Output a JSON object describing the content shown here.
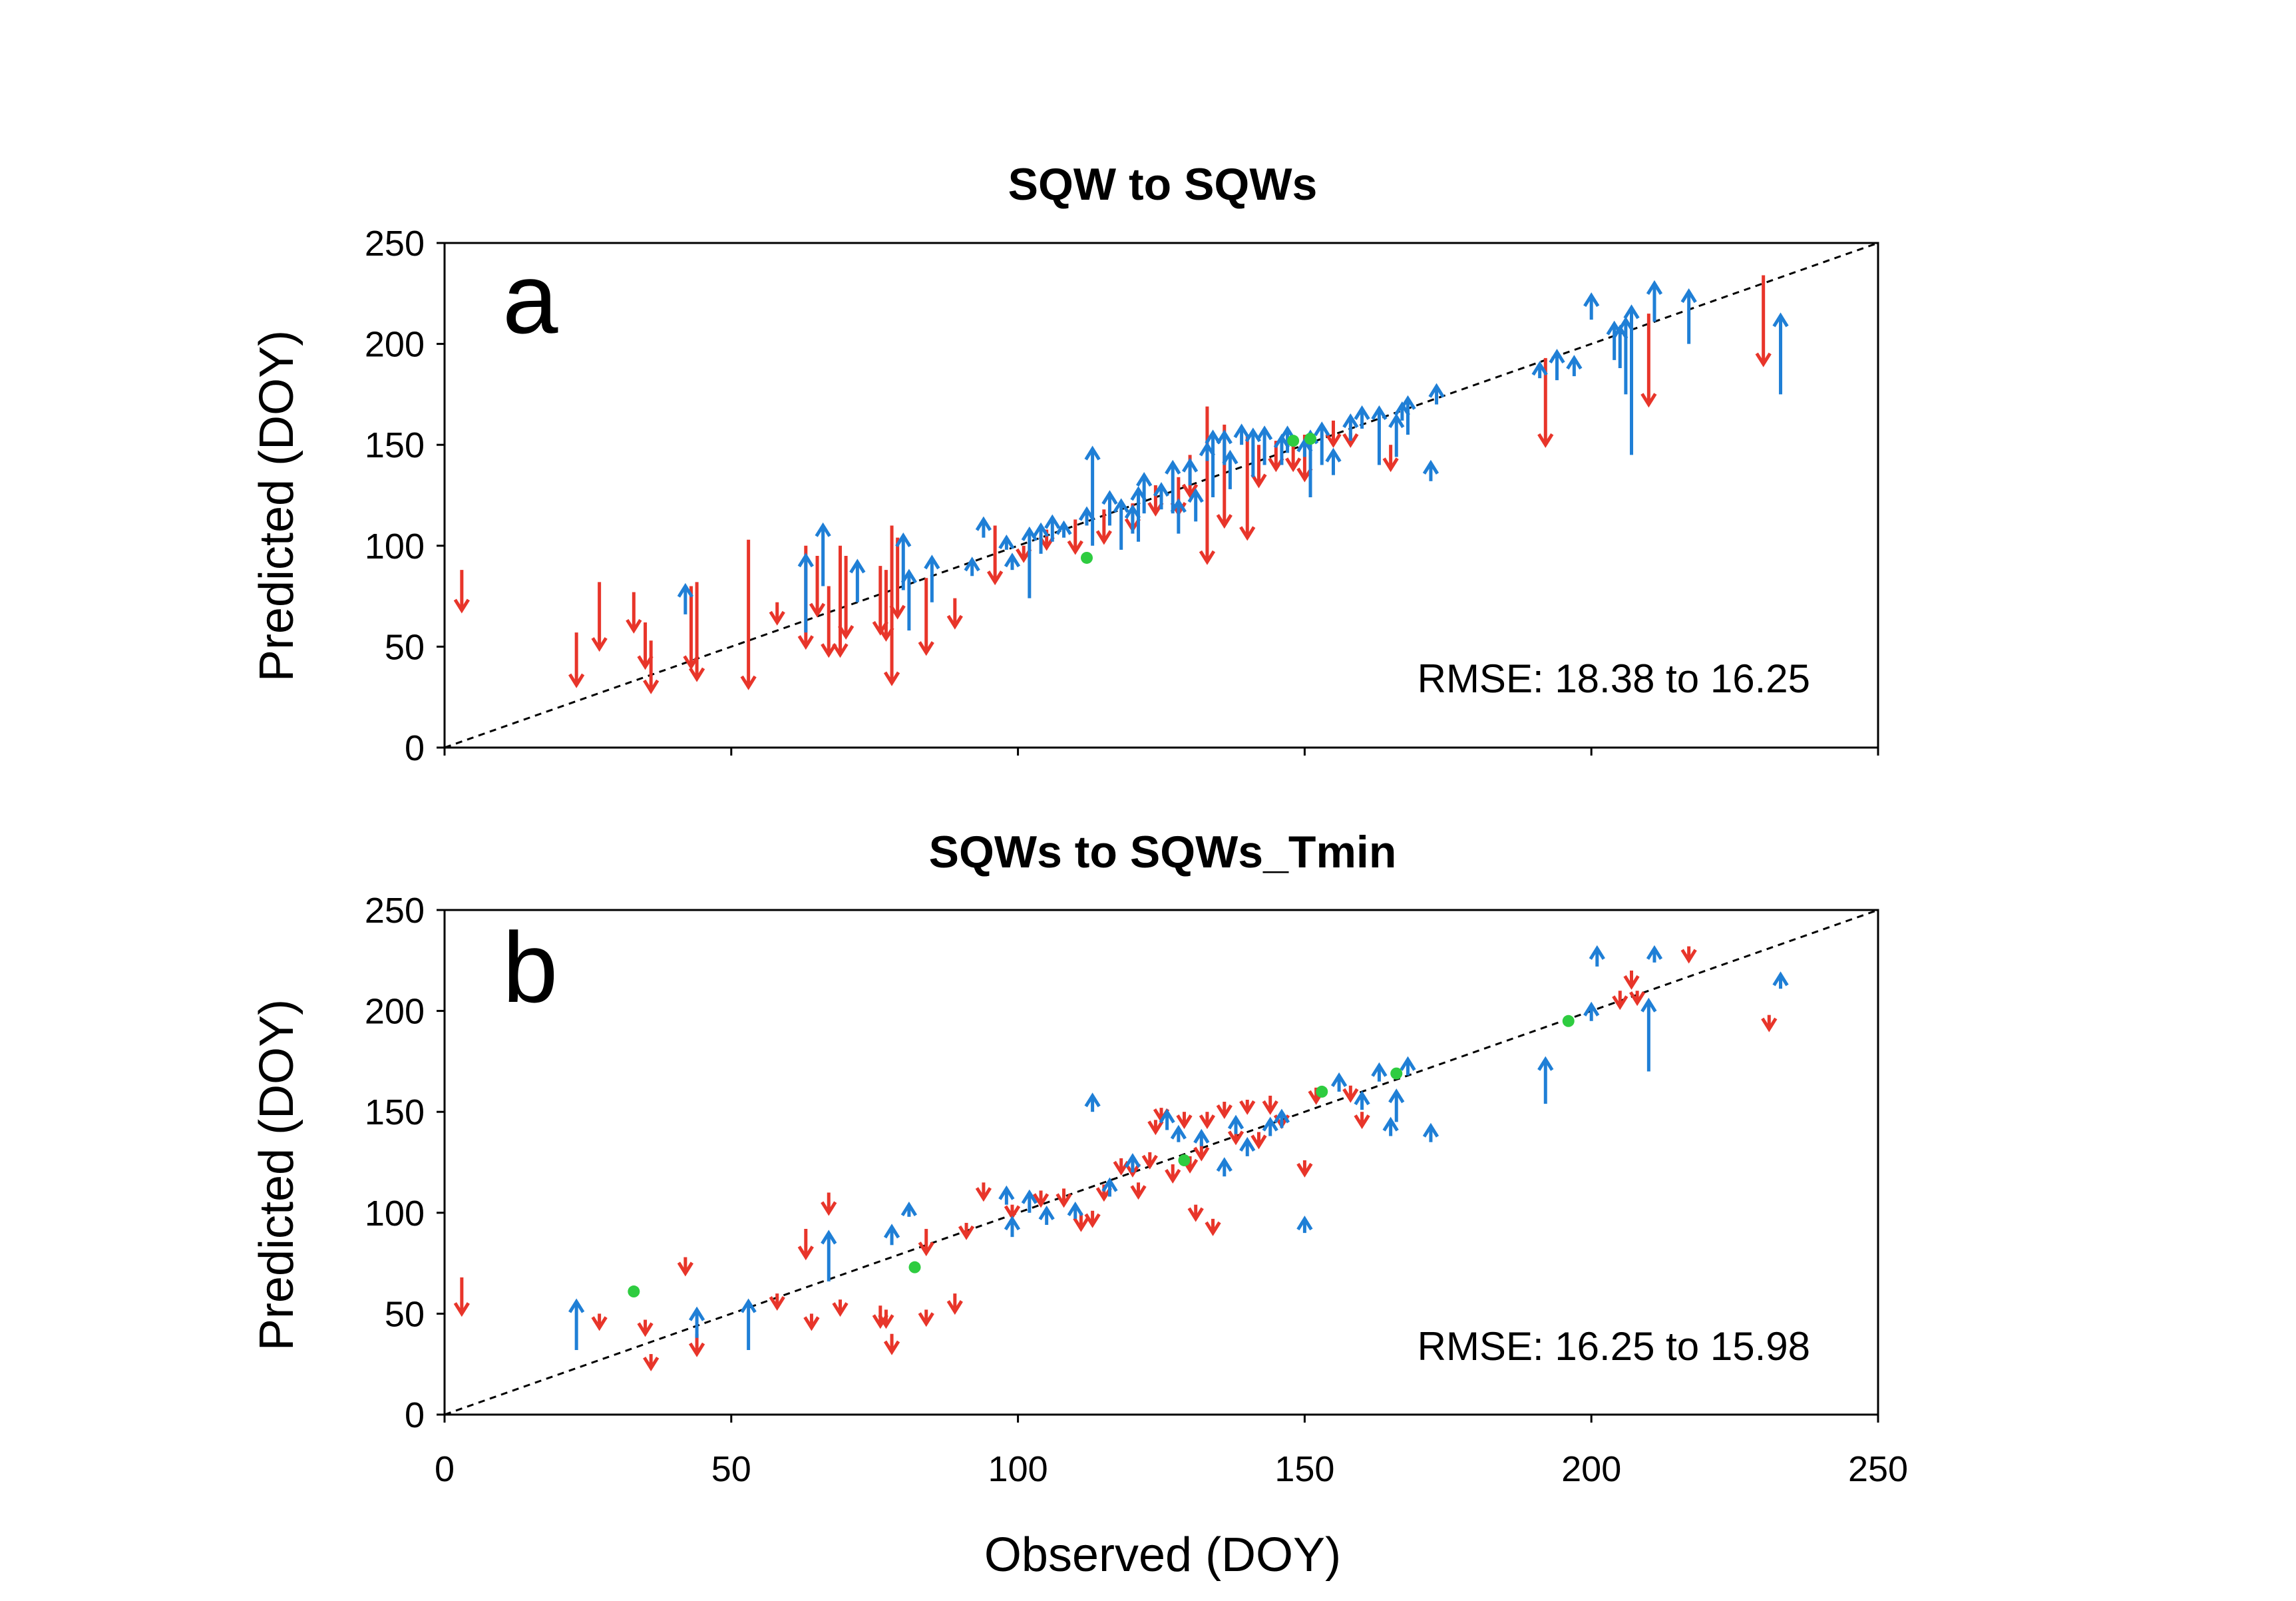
{
  "colors": {
    "increase": "#1f7fd6",
    "decrease": "#e8352a",
    "unchanged": "#2ecc40",
    "axis": "#000000"
  },
  "xlabel": "Observed (DOY)",
  "chart_data": [
    {
      "type": "scatter",
      "panel": "a",
      "title": "SQW to SQWs",
      "ylabel": "Predicted (DOY)",
      "xlabel": "Observed (DOY)",
      "xlim": [
        0,
        250
      ],
      "ylim": [
        0,
        250
      ],
      "xticks": [
        "0",
        "50",
        "100",
        "150",
        "200",
        "250"
      ],
      "yticks": [
        "0",
        "50",
        "100",
        "150",
        "200",
        "250"
      ],
      "annotation": "RMSE: 18.38 to 16.25",
      "reference_line": "1:1 dashed",
      "arrows": [
        {
          "x": 3,
          "from": 88,
          "to": 68
        },
        {
          "x": 23,
          "from": 57,
          "to": 31
        },
        {
          "x": 27,
          "from": 82,
          "to": 49
        },
        {
          "x": 33,
          "from": 77,
          "to": 58
        },
        {
          "x": 35,
          "from": 62,
          "to": 40
        },
        {
          "x": 36,
          "from": 53,
          "to": 28
        },
        {
          "x": 43,
          "from": 80,
          "to": 40
        },
        {
          "x": 44,
          "from": 82,
          "to": 34
        },
        {
          "x": 53,
          "from": 103,
          "to": 30
        },
        {
          "x": 58,
          "from": 72,
          "to": 62
        },
        {
          "x": 63,
          "from": 100,
          "to": 50
        },
        {
          "x": 65,
          "from": 95,
          "to": 66
        },
        {
          "x": 67,
          "from": 80,
          "to": 46
        },
        {
          "x": 69,
          "from": 100,
          "to": 46
        },
        {
          "x": 70,
          "from": 95,
          "to": 55
        },
        {
          "x": 76,
          "from": 90,
          "to": 57
        },
        {
          "x": 77,
          "from": 88,
          "to": 54
        },
        {
          "x": 78,
          "from": 110,
          "to": 32
        },
        {
          "x": 79,
          "from": 104,
          "to": 65
        },
        {
          "x": 84,
          "from": 84,
          "to": 47
        },
        {
          "x": 89,
          "from": 74,
          "to": 60
        },
        {
          "x": 96,
          "from": 110,
          "to": 82
        },
        {
          "x": 101,
          "from": 100,
          "to": 93
        },
        {
          "x": 105,
          "from": 108,
          "to": 99
        },
        {
          "x": 110,
          "from": 113,
          "to": 97
        },
        {
          "x": 115,
          "from": 118,
          "to": 102
        },
        {
          "x": 120,
          "from": 121,
          "to": 108
        },
        {
          "x": 124,
          "from": 130,
          "to": 116
        },
        {
          "x": 128,
          "from": 134,
          "to": 116
        },
        {
          "x": 130,
          "from": 145,
          "to": 125
        },
        {
          "x": 133,
          "from": 169,
          "to": 92
        },
        {
          "x": 136,
          "from": 160,
          "to": 110
        },
        {
          "x": 140,
          "from": 155,
          "to": 104
        },
        {
          "x": 142,
          "from": 150,
          "to": 130
        },
        {
          "x": 145,
          "from": 152,
          "to": 138
        },
        {
          "x": 148,
          "from": 150,
          "to": 138
        },
        {
          "x": 150,
          "from": 155,
          "to": 133
        },
        {
          "x": 155,
          "from": 162,
          "to": 150
        },
        {
          "x": 158,
          "from": 156,
          "to": 150
        },
        {
          "x": 165,
          "from": 150,
          "to": 138
        },
        {
          "x": 192,
          "from": 193,
          "to": 150
        },
        {
          "x": 210,
          "from": 215,
          "to": 170
        },
        {
          "x": 230,
          "from": 234,
          "to": 190
        },
        {
          "x": 42,
          "from": 66,
          "to": 80
        },
        {
          "x": 63,
          "from": 57,
          "to": 95
        },
        {
          "x": 66,
          "from": 80,
          "to": 110
        },
        {
          "x": 72,
          "from": 72,
          "to": 92
        },
        {
          "x": 80,
          "from": 78,
          "to": 105
        },
        {
          "x": 81,
          "from": 58,
          "to": 87
        },
        {
          "x": 85,
          "from": 72,
          "to": 94
        },
        {
          "x": 92,
          "from": 85,
          "to": 93
        },
        {
          "x": 94,
          "from": 104,
          "to": 113
        },
        {
          "x": 98,
          "from": 98,
          "to": 104
        },
        {
          "x": 99,
          "from": 88,
          "to": 95
        },
        {
          "x": 102,
          "from": 74,
          "to": 108
        },
        {
          "x": 104,
          "from": 96,
          "to": 110
        },
        {
          "x": 106,
          "from": 102,
          "to": 114
        },
        {
          "x": 108,
          "from": 104,
          "to": 111
        },
        {
          "x": 112,
          "from": 110,
          "to": 118
        },
        {
          "x": 113,
          "from": 100,
          "to": 148
        },
        {
          "x": 116,
          "from": 110,
          "to": 126
        },
        {
          "x": 118,
          "from": 98,
          "to": 122
        },
        {
          "x": 120,
          "from": 106,
          "to": 119
        },
        {
          "x": 121,
          "from": 102,
          "to": 128
        },
        {
          "x": 122,
          "from": 116,
          "to": 135
        },
        {
          "x": 125,
          "from": 118,
          "to": 130
        },
        {
          "x": 127,
          "from": 116,
          "to": 141
        },
        {
          "x": 128,
          "from": 106,
          "to": 122
        },
        {
          "x": 130,
          "from": 130,
          "to": 142
        },
        {
          "x": 131,
          "from": 112,
          "to": 127
        },
        {
          "x": 133,
          "from": 142,
          "to": 150
        },
        {
          "x": 134,
          "from": 124,
          "to": 156
        },
        {
          "x": 136,
          "from": 140,
          "to": 156
        },
        {
          "x": 137,
          "from": 128,
          "to": 146
        },
        {
          "x": 139,
          "from": 150,
          "to": 159
        },
        {
          "x": 141,
          "from": 134,
          "to": 157
        },
        {
          "x": 143,
          "from": 140,
          "to": 158
        },
        {
          "x": 146,
          "from": 140,
          "to": 154
        },
        {
          "x": 147,
          "from": 146,
          "to": 158
        },
        {
          "x": 150,
          "from": 144,
          "to": 152
        },
        {
          "x": 151,
          "from": 124,
          "to": 156
        },
        {
          "x": 153,
          "from": 140,
          "to": 160
        },
        {
          "x": 155,
          "from": 135,
          "to": 147
        },
        {
          "x": 158,
          "from": 152,
          "to": 164
        },
        {
          "x": 160,
          "from": 158,
          "to": 168
        },
        {
          "x": 163,
          "from": 140,
          "to": 168
        },
        {
          "x": 166,
          "from": 144,
          "to": 164
        },
        {
          "x": 167,
          "from": 162,
          "to": 170
        },
        {
          "x": 168,
          "from": 155,
          "to": 173
        },
        {
          "x": 172,
          "from": 132,
          "to": 141
        },
        {
          "x": 173,
          "from": 170,
          "to": 179
        },
        {
          "x": 191,
          "from": 183,
          "to": 190
        },
        {
          "x": 194,
          "from": 182,
          "to": 196
        },
        {
          "x": 197,
          "from": 184,
          "to": 193
        },
        {
          "x": 200,
          "from": 212,
          "to": 224
        },
        {
          "x": 204,
          "from": 192,
          "to": 210
        },
        {
          "x": 205,
          "from": 188,
          "to": 208
        },
        {
          "x": 206,
          "from": 175,
          "to": 212
        },
        {
          "x": 207,
          "from": 145,
          "to": 218
        },
        {
          "x": 211,
          "from": 211,
          "to": 230
        },
        {
          "x": 217,
          "from": 200,
          "to": 226
        },
        {
          "x": 233,
          "from": 175,
          "to": 214
        }
      ],
      "unchanged": [
        {
          "x": 112,
          "y": 94
        },
        {
          "x": 148,
          "y": 152
        },
        {
          "x": 151,
          "y": 153
        }
      ]
    },
    {
      "type": "scatter",
      "panel": "b",
      "title": "SQWs to SQWs_Tmin",
      "ylabel": "Predicted (DOY)",
      "xlabel": "Observed (DOY)",
      "xlim": [
        0,
        250
      ],
      "ylim": [
        0,
        250
      ],
      "xticks": [
        "0",
        "50",
        "100",
        "150",
        "200",
        "250"
      ],
      "yticks": [
        "0",
        "50",
        "100",
        "150",
        "200",
        "250"
      ],
      "annotation": "RMSE: 16.25 to 15.98",
      "reference_line": "1:1 dashed",
      "arrows": [
        {
          "x": 3,
          "from": 68,
          "to": 50
        },
        {
          "x": 27,
          "from": 50,
          "to": 43
        },
        {
          "x": 35,
          "from": 47,
          "to": 40
        },
        {
          "x": 36,
          "from": 30,
          "to": 23
        },
        {
          "x": 42,
          "from": 78,
          "to": 70
        },
        {
          "x": 44,
          "from": 40,
          "to": 30
        },
        {
          "x": 58,
          "from": 60,
          "to": 53
        },
        {
          "x": 63,
          "from": 92,
          "to": 78
        },
        {
          "x": 64,
          "from": 50,
          "to": 43
        },
        {
          "x": 67,
          "from": 110,
          "to": 100
        },
        {
          "x": 69,
          "from": 57,
          "to": 50
        },
        {
          "x": 76,
          "from": 54,
          "to": 44
        },
        {
          "x": 77,
          "from": 52,
          "to": 44
        },
        {
          "x": 78,
          "from": 40,
          "to": 31
        },
        {
          "x": 84,
          "from": 52,
          "to": 45
        },
        {
          "x": 84,
          "from": 92,
          "to": 80
        },
        {
          "x": 89,
          "from": 60,
          "to": 51
        },
        {
          "x": 91,
          "from": 95,
          "to": 88
        },
        {
          "x": 94,
          "from": 115,
          "to": 107
        },
        {
          "x": 99,
          "from": 104,
          "to": 98
        },
        {
          "x": 104,
          "from": 111,
          "to": 104
        },
        {
          "x": 108,
          "from": 112,
          "to": 104
        },
        {
          "x": 111,
          "from": 100,
          "to": 92
        },
        {
          "x": 113,
          "from": 101,
          "to": 94
        },
        {
          "x": 115,
          "from": 114,
          "to": 107
        },
        {
          "x": 118,
          "from": 127,
          "to": 120
        },
        {
          "x": 120,
          "from": 126,
          "to": 119
        },
        {
          "x": 121,
          "from": 115,
          "to": 108
        },
        {
          "x": 123,
          "from": 130,
          "to": 123
        },
        {
          "x": 124,
          "from": 146,
          "to": 140
        },
        {
          "x": 125,
          "from": 152,
          "to": 146
        },
        {
          "x": 127,
          "from": 124,
          "to": 116
        },
        {
          "x": 129,
          "from": 150,
          "to": 143
        },
        {
          "x": 130,
          "from": 128,
          "to": 121
        },
        {
          "x": 131,
          "from": 104,
          "to": 97
        },
        {
          "x": 132,
          "from": 135,
          "to": 127
        },
        {
          "x": 133,
          "from": 150,
          "to": 143
        },
        {
          "x": 134,
          "from": 97,
          "to": 90
        },
        {
          "x": 136,
          "from": 155,
          "to": 148
        },
        {
          "x": 138,
          "from": 142,
          "to": 135
        },
        {
          "x": 140,
          "from": 156,
          "to": 150
        },
        {
          "x": 142,
          "from": 140,
          "to": 133
        },
        {
          "x": 144,
          "from": 158,
          "to": 150
        },
        {
          "x": 146,
          "from": 150,
          "to": 143
        },
        {
          "x": 150,
          "from": 126,
          "to": 119
        },
        {
          "x": 152,
          "from": 162,
          "to": 155
        },
        {
          "x": 158,
          "from": 163,
          "to": 156
        },
        {
          "x": 160,
          "from": 150,
          "to": 143
        },
        {
          "x": 205,
          "from": 210,
          "to": 202
        },
        {
          "x": 207,
          "from": 220,
          "to": 212
        },
        {
          "x": 208,
          "from": 210,
          "to": 204
        },
        {
          "x": 217,
          "from": 232,
          "to": 225
        },
        {
          "x": 231,
          "from": 198,
          "to": 191
        },
        {
          "x": 23,
          "from": 32,
          "to": 56
        },
        {
          "x": 44,
          "from": 38,
          "to": 52
        },
        {
          "x": 53,
          "from": 32,
          "to": 56
        },
        {
          "x": 67,
          "from": 66,
          "to": 90
        },
        {
          "x": 78,
          "from": 84,
          "to": 93
        },
        {
          "x": 81,
          "from": 98,
          "to": 104
        },
        {
          "x": 98,
          "from": 104,
          "to": 112
        },
        {
          "x": 99,
          "from": 88,
          "to": 97
        },
        {
          "x": 102,
          "from": 100,
          "to": 110
        },
        {
          "x": 105,
          "from": 94,
          "to": 102
        },
        {
          "x": 110,
          "from": 97,
          "to": 104
        },
        {
          "x": 113,
          "from": 150,
          "to": 158
        },
        {
          "x": 116,
          "from": 108,
          "to": 116
        },
        {
          "x": 120,
          "from": 120,
          "to": 128
        },
        {
          "x": 126,
          "from": 141,
          "to": 150
        },
        {
          "x": 128,
          "from": 135,
          "to": 142
        },
        {
          "x": 132,
          "from": 133,
          "to": 140
        },
        {
          "x": 136,
          "from": 118,
          "to": 126
        },
        {
          "x": 138,
          "from": 139,
          "to": 147
        },
        {
          "x": 140,
          "from": 128,
          "to": 136
        },
        {
          "x": 144,
          "from": 138,
          "to": 146
        },
        {
          "x": 146,
          "from": 142,
          "to": 150
        },
        {
          "x": 150,
          "from": 90,
          "to": 97
        },
        {
          "x": 156,
          "from": 160,
          "to": 168
        },
        {
          "x": 160,
          "from": 151,
          "to": 159
        },
        {
          "x": 163,
          "from": 165,
          "to": 173
        },
        {
          "x": 165,
          "from": 138,
          "to": 146
        },
        {
          "x": 166,
          "from": 145,
          "to": 160
        },
        {
          "x": 168,
          "from": 168,
          "to": 176
        },
        {
          "x": 172,
          "from": 135,
          "to": 143
        },
        {
          "x": 192,
          "from": 154,
          "to": 176
        },
        {
          "x": 200,
          "from": 195,
          "to": 203
        },
        {
          "x": 201,
          "from": 222,
          "to": 231
        },
        {
          "x": 210,
          "from": 170,
          "to": 205
        },
        {
          "x": 211,
          "from": 224,
          "to": 231
        },
        {
          "x": 233,
          "from": 211,
          "to": 218
        }
      ],
      "unchanged": [
        {
          "x": 33,
          "y": 61
        },
        {
          "x": 82,
          "y": 73
        },
        {
          "x": 129,
          "y": 126
        },
        {
          "x": 153,
          "y": 160
        },
        {
          "x": 166,
          "y": 169
        },
        {
          "x": 196,
          "y": 195
        }
      ]
    }
  ]
}
